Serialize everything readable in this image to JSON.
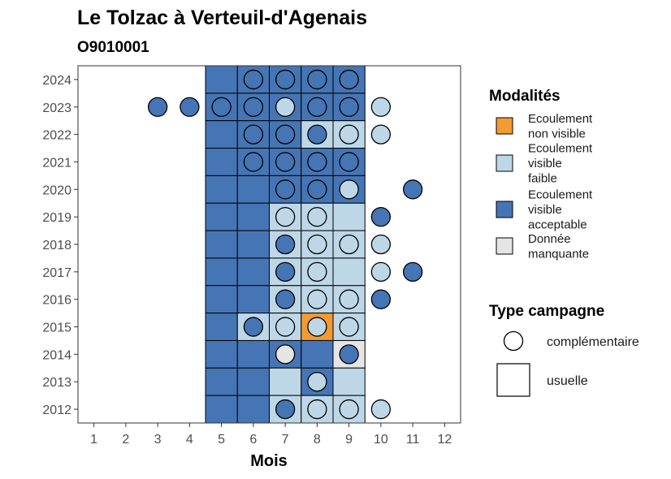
{
  "chart_data": {
    "type": "heatmap",
    "title": "Le Tolzac à Verteuil-d'Agenais",
    "subtitle": "O9010001",
    "xlabel": "Mois",
    "x_ticks": [
      1,
      2,
      3,
      4,
      5,
      6,
      7,
      8,
      9,
      10,
      11,
      12
    ],
    "y_ticks": [
      2012,
      2013,
      2014,
      2015,
      2016,
      2017,
      2018,
      2019,
      2020,
      2021,
      2022,
      2023,
      2024
    ],
    "xlim": [
      0.5,
      12.5
    ],
    "ylim": [
      2011.5,
      2024.5
    ],
    "grid": false,
    "legend_position": "right",
    "colors": {
      "non_visible": "#f39a32",
      "faible": "#bdd7e7",
      "acceptable": "#4575b4",
      "manquante": "#e5e5e5"
    },
    "legend_modalites": {
      "title": "Modalités",
      "items": [
        {
          "key": "non_visible",
          "lines": [
            "Ecoulement",
            "non visible"
          ]
        },
        {
          "key": "faible",
          "lines": [
            "Ecoulement",
            "visible",
            "faible"
          ]
        },
        {
          "key": "acceptable",
          "lines": [
            "Ecoulement",
            "visible",
            "acceptable"
          ]
        },
        {
          "key": "manquante",
          "lines": [
            "Donnée",
            "manquante"
          ]
        }
      ]
    },
    "legend_campagne": {
      "title": "Type campagne",
      "items": [
        {
          "shape": "circle",
          "label": "complémentaire"
        },
        {
          "shape": "square",
          "label": "usuelle"
        }
      ]
    },
    "tiles": [
      {
        "year": 2024,
        "months": [
          5,
          6,
          7,
          8,
          9
        ],
        "values": [
          "acceptable",
          "acceptable",
          "acceptable",
          "acceptable",
          "acceptable"
        ]
      },
      {
        "year": 2023,
        "months": [
          5,
          6,
          7,
          8,
          9
        ],
        "values": [
          "acceptable",
          "acceptable",
          "acceptable",
          "acceptable",
          "acceptable"
        ]
      },
      {
        "year": 2022,
        "months": [
          5,
          6,
          7,
          8,
          9
        ],
        "values": [
          "acceptable",
          "acceptable",
          "acceptable",
          "faible",
          "faible"
        ]
      },
      {
        "year": 2021,
        "months": [
          5,
          6,
          7,
          8,
          9
        ],
        "values": [
          "acceptable",
          "acceptable",
          "acceptable",
          "acceptable",
          "acceptable"
        ]
      },
      {
        "year": 2020,
        "months": [
          5,
          6,
          7,
          8,
          9
        ],
        "values": [
          "acceptable",
          "acceptable",
          "acceptable",
          "acceptable",
          "acceptable"
        ]
      },
      {
        "year": 2019,
        "months": [
          5,
          6,
          7,
          8,
          9
        ],
        "values": [
          "acceptable",
          "acceptable",
          "faible",
          "faible",
          "faible"
        ]
      },
      {
        "year": 2018,
        "months": [
          5,
          6,
          7,
          8,
          9
        ],
        "values": [
          "acceptable",
          "acceptable",
          "faible",
          "faible",
          "faible"
        ]
      },
      {
        "year": 2017,
        "months": [
          5,
          6,
          7,
          8,
          9
        ],
        "values": [
          "acceptable",
          "acceptable",
          "faible",
          "faible",
          "faible"
        ]
      },
      {
        "year": 2016,
        "months": [
          5,
          6,
          7,
          8,
          9
        ],
        "values": [
          "acceptable",
          "acceptable",
          "faible",
          "faible",
          "faible"
        ]
      },
      {
        "year": 2015,
        "months": [
          5,
          6,
          7,
          8,
          9
        ],
        "values": [
          "acceptable",
          "faible",
          "faible",
          "non_visible",
          "faible"
        ]
      },
      {
        "year": 2014,
        "months": [
          5,
          6,
          7,
          8,
          9
        ],
        "values": [
          "acceptable",
          "acceptable",
          "acceptable",
          "acceptable",
          "manquante"
        ]
      },
      {
        "year": 2013,
        "months": [
          5,
          6,
          7,
          8,
          9
        ],
        "values": [
          "acceptable",
          "acceptable",
          "faible",
          "acceptable",
          "faible"
        ]
      },
      {
        "year": 2012,
        "months": [
          5,
          6,
          7,
          8,
          9
        ],
        "values": [
          "acceptable",
          "acceptable",
          "faible",
          "faible",
          "faible"
        ]
      }
    ],
    "points": [
      {
        "year": 2024,
        "months": [
          6,
          7,
          8,
          9
        ],
        "values": [
          "acceptable",
          "acceptable",
          "acceptable",
          "acceptable"
        ]
      },
      {
        "year": 2023,
        "months": [
          3,
          4,
          5,
          6,
          7,
          8,
          9,
          10
        ],
        "values": [
          "acceptable",
          "acceptable",
          "acceptable",
          "acceptable",
          "faible",
          "acceptable",
          "acceptable",
          "faible"
        ]
      },
      {
        "year": 2022,
        "months": [
          6,
          7,
          8,
          9,
          10
        ],
        "values": [
          "acceptable",
          "acceptable",
          "acceptable",
          "faible",
          "faible"
        ]
      },
      {
        "year": 2021,
        "months": [
          6,
          7,
          8,
          9
        ],
        "values": [
          "acceptable",
          "acceptable",
          "acceptable",
          "acceptable"
        ]
      },
      {
        "year": 2020,
        "months": [
          7,
          8,
          9,
          11
        ],
        "values": [
          "acceptable",
          "acceptable",
          "faible",
          "acceptable"
        ]
      },
      {
        "year": 2019,
        "months": [
          7,
          8,
          10
        ],
        "values": [
          "faible",
          "faible",
          "acceptable"
        ]
      },
      {
        "year": 2018,
        "months": [
          7,
          8,
          9,
          10
        ],
        "values": [
          "acceptable",
          "faible",
          "faible",
          "faible"
        ]
      },
      {
        "year": 2017,
        "months": [
          7,
          8,
          10,
          11
        ],
        "values": [
          "acceptable",
          "faible",
          "faible",
          "acceptable"
        ]
      },
      {
        "year": 2016,
        "months": [
          7,
          8,
          9,
          10
        ],
        "values": [
          "acceptable",
          "faible",
          "faible",
          "acceptable"
        ]
      },
      {
        "year": 2015,
        "months": [
          6,
          7,
          8,
          9
        ],
        "values": [
          "acceptable",
          "faible",
          "faible",
          "faible"
        ]
      },
      {
        "year": 2014,
        "months": [
          7,
          9
        ],
        "values": [
          "manquante",
          "acceptable"
        ]
      },
      {
        "year": 2013,
        "months": [
          8
        ],
        "values": [
          "faible"
        ]
      },
      {
        "year": 2012,
        "months": [
          7,
          8,
          9,
          10
        ],
        "values": [
          "acceptable",
          "faible",
          "faible",
          "faible"
        ]
      }
    ]
  }
}
